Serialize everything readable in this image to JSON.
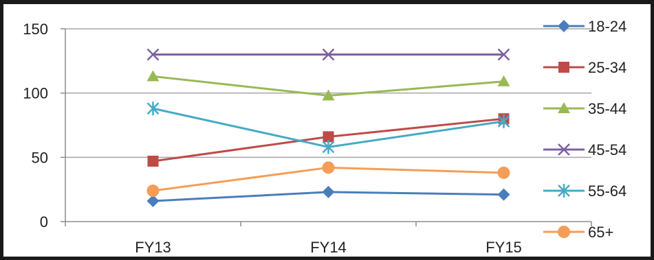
{
  "chart_data": {
    "type": "line",
    "title": "",
    "xlabel": "",
    "ylabel": "",
    "categories": [
      "FY13",
      "FY14",
      "FY15"
    ],
    "ylim": [
      0,
      150
    ],
    "yticks": [
      "0",
      "50",
      "100",
      "150"
    ],
    "grid": "horizontal",
    "legend_position": "right",
    "series": [
      {
        "name": "18-24",
        "values": [
          16,
          23,
          21
        ],
        "color": "#4a7ebb",
        "marker": "diamond"
      },
      {
        "name": "25-34",
        "values": [
          47,
          66,
          80
        ],
        "color": "#be4b48",
        "marker": "square"
      },
      {
        "name": "35-44",
        "values": [
          113,
          98,
          109
        ],
        "color": "#98b954",
        "marker": "triangle"
      },
      {
        "name": "45-54",
        "values": [
          130,
          130,
          130
        ],
        "color": "#7d60a0",
        "marker": "x"
      },
      {
        "name": "55-64",
        "values": [
          88,
          58,
          78
        ],
        "color": "#46aac5",
        "marker": "star"
      },
      {
        "name": "65+",
        "values": [
          24,
          42,
          38
        ],
        "color": "#f59d56",
        "marker": "circle"
      }
    ]
  }
}
